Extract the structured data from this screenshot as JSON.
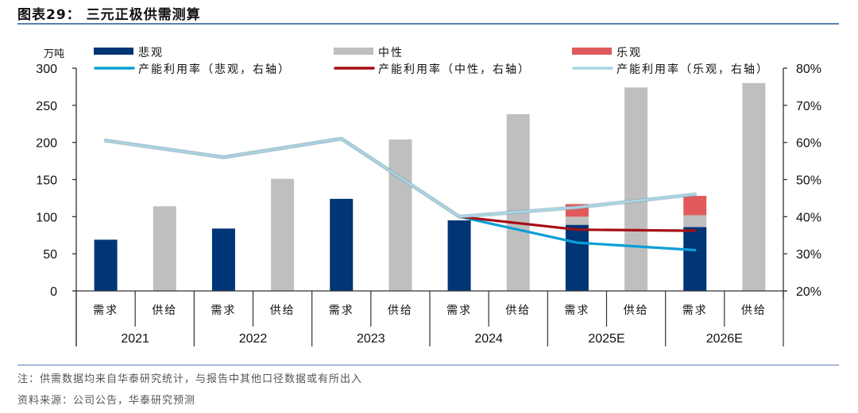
{
  "header": {
    "title": "图表29：  三元正极供需测算"
  },
  "footer": {
    "note": "注：供需数据均来自华泰研究统计，与报告中其他口径数据或有所出入",
    "source": "资料来源：公司公告，华泰研究预测"
  },
  "colors": {
    "pessimistic_bar": "#003576",
    "neutral_bar": "#bfbfbf",
    "optimistic_bar": "#e05a5c",
    "util_pessimistic_line": "#0a9fd6",
    "util_neutral_line": "#a50f15",
    "util_optimistic_line": "#a9d3e0",
    "axis": "#333333",
    "rule": "#5b7fae"
  },
  "chart_data": {
    "type": "bar",
    "title": "三元正极供需测算",
    "left_axis": {
      "label": "万吨",
      "ylim": [
        0,
        300
      ],
      "ticks": [
        "0",
        "50",
        "100",
        "150",
        "200",
        "250",
        "300"
      ]
    },
    "right_axis": {
      "label": "",
      "ylim": [
        20,
        80
      ],
      "ticks": [
        "20%",
        "30%",
        "40%",
        "50%",
        "60%",
        "70%",
        "80%"
      ]
    },
    "grid": false,
    "legend_position": "top",
    "legend": [
      {
        "key": "pessimistic",
        "label": "悲观",
        "kind": "bar"
      },
      {
        "key": "neutral",
        "label": "中性",
        "kind": "bar"
      },
      {
        "key": "optimistic",
        "label": "乐观",
        "kind": "bar"
      },
      {
        "key": "util_pessimistic",
        "label": "产能利用率（悲观，右轴）",
        "kind": "line"
      },
      {
        "key": "util_neutral",
        "label": "产能利用率（中性，右轴）",
        "kind": "line"
      },
      {
        "key": "util_optimistic",
        "label": "产能利用率（乐观，右轴）",
        "kind": "line"
      }
    ],
    "years": [
      "2021",
      "2022",
      "2023",
      "2024",
      "2025E",
      "2026E"
    ],
    "sub_categories": [
      "需求",
      "供给"
    ],
    "series": [
      {
        "name": "需求-悲观",
        "key": "demand_pessimistic",
        "values": [
          69,
          84,
          124,
          95,
          89,
          86
        ]
      },
      {
        "name": "需求-中性增量",
        "key": "demand_neutral_increment",
        "values": [
          0,
          0,
          0,
          0,
          11,
          16
        ]
      },
      {
        "name": "需求-乐观增量",
        "key": "demand_optimistic_increment",
        "values": [
          0,
          0,
          0,
          0,
          17,
          26
        ]
      },
      {
        "name": "供给",
        "key": "supply",
        "values": [
          114,
          151,
          204,
          238,
          274,
          280
        ]
      },
      {
        "name": "产能利用率（悲观，右轴）",
        "key": "util_pessimistic",
        "values": [
          60.5,
          56,
          61,
          40,
          33,
          31
        ]
      },
      {
        "name": "产能利用率（中性，右轴）",
        "key": "util_neutral",
        "values": [
          60.5,
          56,
          61,
          40,
          36.5,
          36.2
        ]
      },
      {
        "name": "产能利用率（乐观，右轴）",
        "key": "util_optimistic",
        "values": [
          60.5,
          56,
          61,
          40,
          42.5,
          46
        ]
      }
    ]
  }
}
